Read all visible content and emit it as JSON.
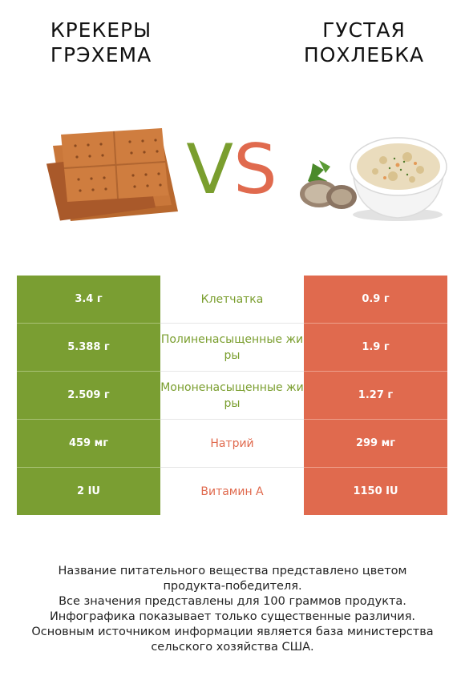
{
  "left_food": {
    "name_line1": "КРЕКЕРЫ",
    "name_line2": "ГРЭХЕМА",
    "image_icon": "graham-crackers-image"
  },
  "right_food": {
    "name_line1": "ГУСТАЯ",
    "name_line2": "ПОХЛЕБКА",
    "image_icon": "clam-chowder-image"
  },
  "vs": {
    "v": "V",
    "s": "S"
  },
  "colors": {
    "left": "#7a9e32",
    "right": "#e06a4e"
  },
  "rows": [
    {
      "left": "3.4 г",
      "nutrient": "Клетчатка",
      "right": "0.9 г",
      "winner": "left"
    },
    {
      "left": "5.388 г",
      "nutrient": "Полиненасыщенные жиры",
      "right": "1.9 г",
      "winner": "left"
    },
    {
      "left": "2.509 г",
      "nutrient": "Мононенасыщенные жиры",
      "right": "1.27 г",
      "winner": "left"
    },
    {
      "left": "459 мг",
      "nutrient": "Натрий",
      "right": "299 мг",
      "winner": "right"
    },
    {
      "left": "2 IU",
      "nutrient": "Витамин A",
      "right": "1150 IU",
      "winner": "right"
    }
  ],
  "footnote": {
    "line1": "Название питательного вещества представлено цветом",
    "line2": "продукта-победителя.",
    "line3": "Все значения представлены для 100 граммов продукта.",
    "line4": "Инфографика показывает только существенные различия.",
    "line5": "Основным источником информации является база министерства",
    "line6": "сельского хозяйства США."
  }
}
